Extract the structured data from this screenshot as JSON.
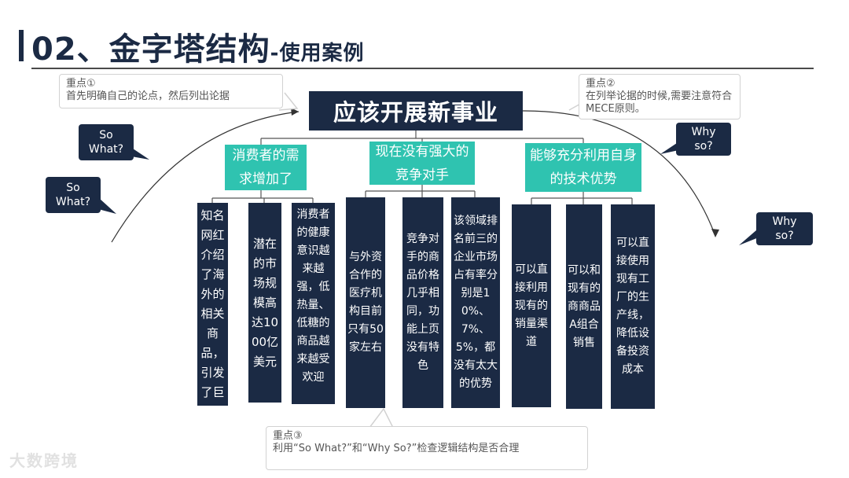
{
  "title": {
    "main": "02、金字塔结构",
    "sub": "-使用案例"
  },
  "top": "应该开展新事业",
  "branches": [
    {
      "label": "消费者的需求增加了",
      "items": [
        "知名网红介绍了海外的相关商品，引发了巨大的",
        "潜在的市场规模高达1000亿美元",
        "消费者的健康意识越来越强，低热量、低糖的商品越来越受欢迎"
      ]
    },
    {
      "label": "现在没有强大的竞争对手",
      "items": [
        "与外资合作的医疗机构目前只有50家左右",
        "竞争对手的商品价格几乎相同，功能上页没有特色",
        "该领域排名前三的企业市场占有率分别是10%、7%、5%，都没有太大的优势"
      ]
    },
    {
      "label": "能够充分利用自身的技术优势",
      "items": [
        "可以直接利用现有的销量渠道",
        "可以和现有的商商品A组合销售",
        "可以直接使用现有工厂的生产线，降低设备投资成本"
      ]
    }
  ],
  "notes": {
    "n1": {
      "title": "重点①",
      "text": "首先明确自己的论点，然后列出论据"
    },
    "n2": {
      "title": "重点②",
      "text": "在列举论据的时候,需要注意符合MECE原则。"
    },
    "n3": {
      "title": "重点③",
      "text": "利用“So What?”和“Why So?”检查逻辑结构是否合理"
    }
  },
  "bubbles": {
    "sowhat1": "So What?",
    "sowhat2": "So What?",
    "whyso1": "Why so?",
    "whyso2": "Why so?"
  },
  "watermark": "大数跨境",
  "colors": {
    "navy": "#1b2a44",
    "teal": "#2fc3b0"
  }
}
